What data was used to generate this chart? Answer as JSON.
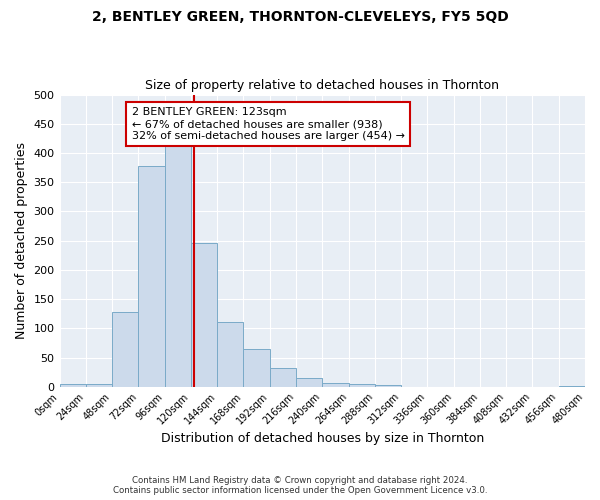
{
  "title": "2, BENTLEY GREEN, THORNTON-CLEVELEYS, FY5 5QD",
  "subtitle": "Size of property relative to detached houses in Thornton",
  "xlabel": "Distribution of detached houses by size in Thornton",
  "ylabel": "Number of detached properties",
  "bin_edges": [
    0,
    24,
    48,
    72,
    96,
    120,
    144,
    168,
    192,
    216,
    240,
    264,
    288,
    312,
    336,
    360,
    384,
    408,
    432,
    456,
    480
  ],
  "bar_heights": [
    4,
    4,
    128,
    378,
    418,
    246,
    110,
    65,
    32,
    15,
    7,
    5,
    3,
    0,
    0,
    0,
    0,
    0,
    0,
    2
  ],
  "bar_color": "#ccdaeb",
  "bar_edge_color": "#7aaac8",
  "property_size": 123,
  "vline_color": "#cc0000",
  "annotation_title": "2 BENTLEY GREEN: 123sqm",
  "annotation_line1": "← 67% of detached houses are smaller (938)",
  "annotation_line2": "32% of semi-detached houses are larger (454) →",
  "annotation_box_edge_color": "#cc0000",
  "annotation_box_face_color": "#ffffff",
  "ylim": [
    0,
    500
  ],
  "yticks": [
    0,
    50,
    100,
    150,
    200,
    250,
    300,
    350,
    400,
    450,
    500
  ],
  "footer_line1": "Contains HM Land Registry data © Crown copyright and database right 2024.",
  "footer_line2": "Contains public sector information licensed under the Open Government Licence v3.0.",
  "bg_color": "#ffffff",
  "plot_bg_color": "#e8eef5",
  "grid_color": "#ffffff",
  "title_fontsize": 10,
  "subtitle_fontsize": 9
}
